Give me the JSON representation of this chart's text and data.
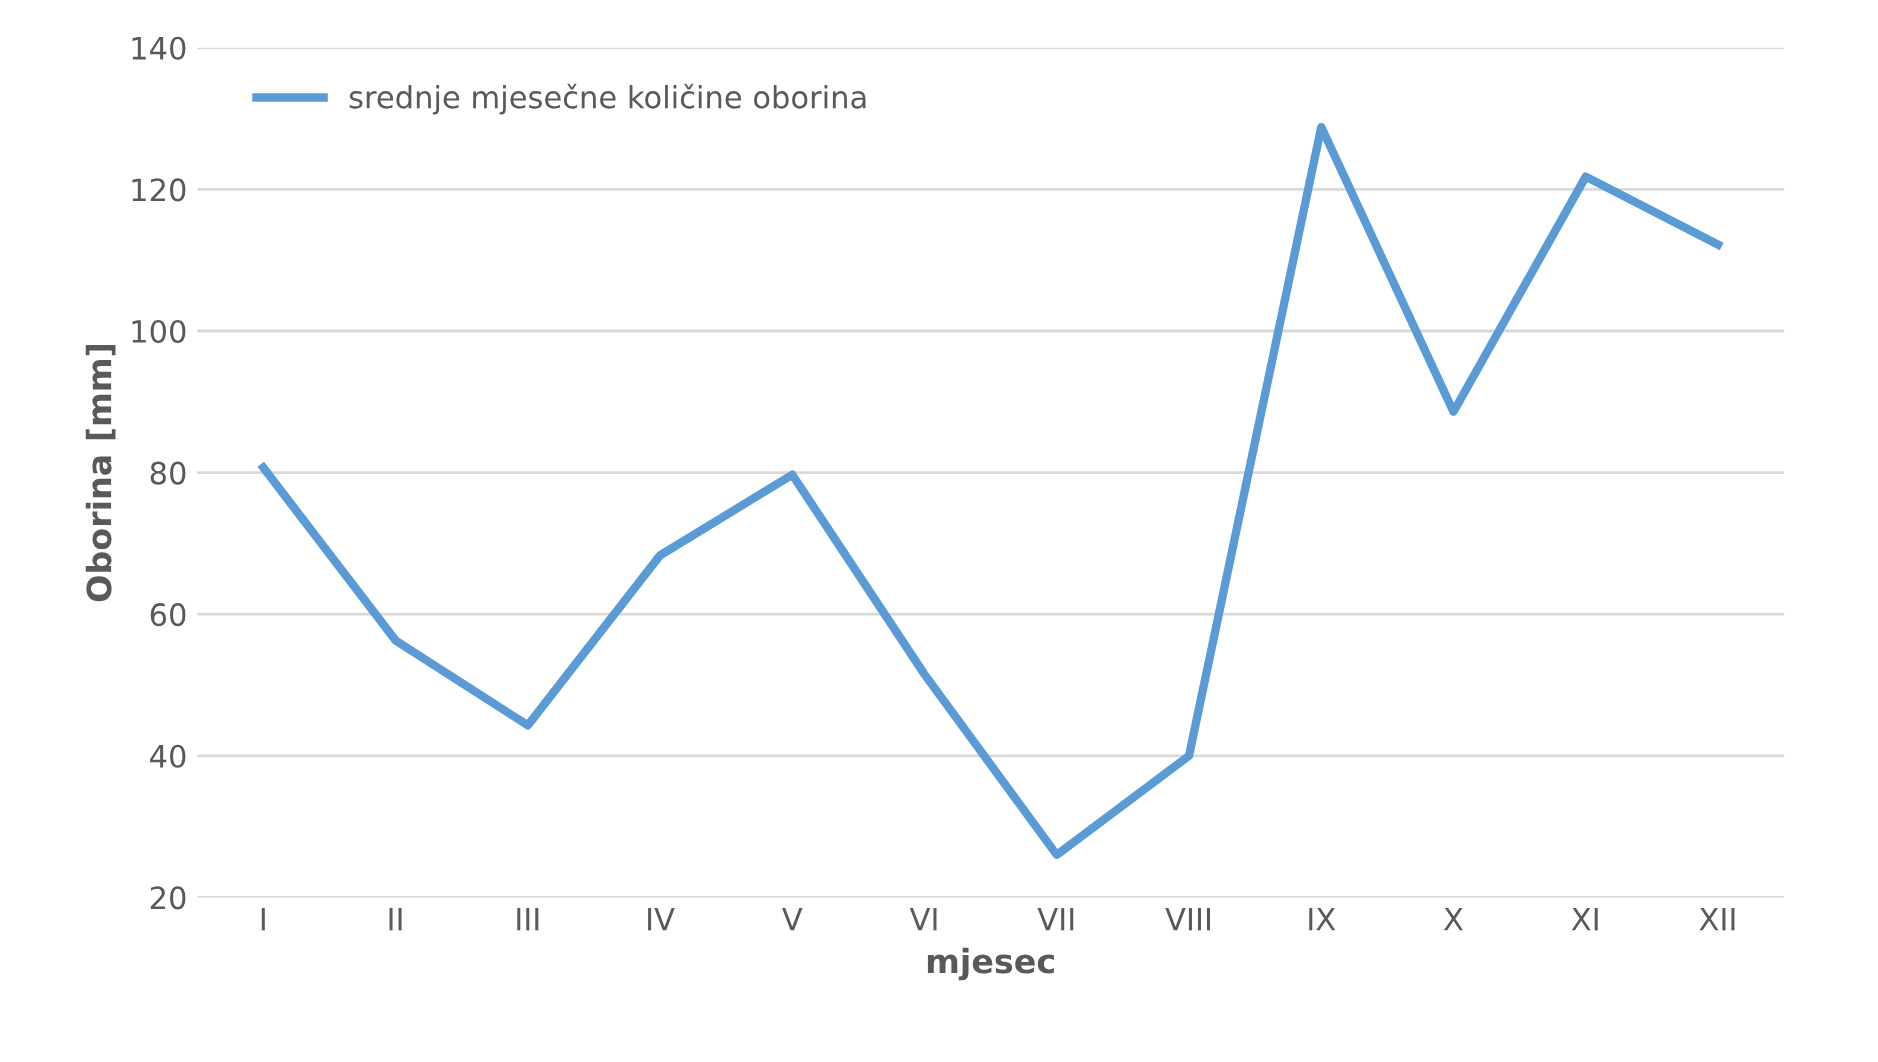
{
  "chart_data": {
    "type": "line",
    "xlabel": "mjesec",
    "ylabel": "Oborina [mm]",
    "categories": [
      "I",
      "II",
      "III",
      "IV",
      "V",
      "VI",
      "VII",
      "VIII",
      "IX",
      "X",
      "XI",
      "XII"
    ],
    "series": [
      {
        "name": "srednje mjesečne količine oborina",
        "color": "#5b9bd5",
        "values": [
          80.7,
          56.3,
          44.3,
          68.3,
          79.7,
          51.5,
          26,
          40,
          128.8,
          88.6,
          121.8,
          112.2
        ]
      }
    ],
    "ylim": [
      20,
      140
    ],
    "yticks": [
      20,
      40,
      60,
      80,
      100,
      120,
      140
    ],
    "grid": "y",
    "legend": "top left",
    "marker": "none",
    "line_style": "solid"
  }
}
